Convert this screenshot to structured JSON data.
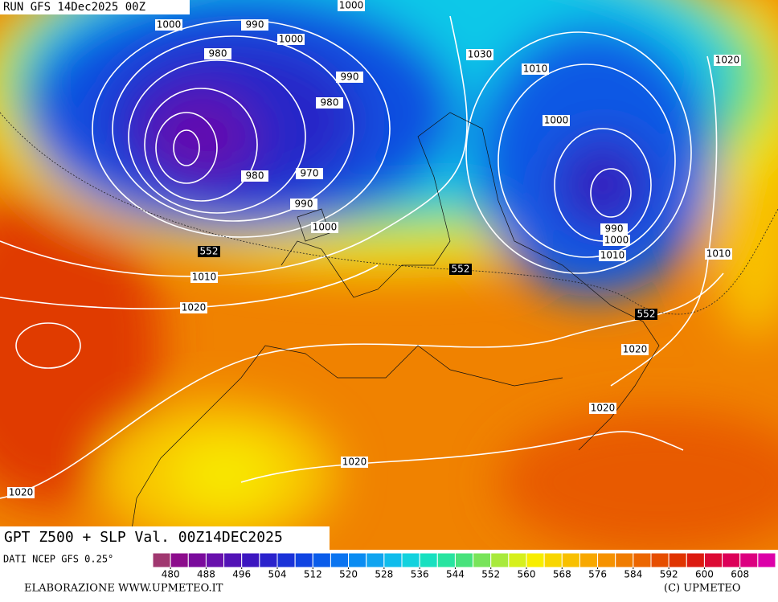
{
  "header": "RUN GFS 14Dec2025 00Z",
  "title": "GPT Z500 + SLP Val. 00Z14DEC2025",
  "source": "DATI NCEP GFS 0.25°",
  "credit_left": "ELABORAZIONE WWW.UPMETEO.IT",
  "credit_right": "(C) UPMETEO",
  "isobar_labels": [
    1000,
    990,
    1000,
    1000,
    980,
    990,
    980,
    1030,
    1010,
    1020,
    1000,
    980,
    970,
    990,
    1000,
    1010,
    990,
    1000,
    1010,
    1010,
    1020,
    1020,
    1020,
    1020,
    1020
  ],
  "z500_labels": [
    552,
    552,
    552
  ],
  "colorbar": {
    "lim": [
      476,
      616
    ],
    "ticks": [
      480,
      488,
      496,
      504,
      512,
      520,
      528,
      536,
      544,
      552,
      560,
      568,
      576,
      584,
      592,
      600,
      608
    ],
    "colors": [
      "#a03870",
      "#8c0c8c",
      "#7a0a9c",
      "#6810ac",
      "#5212b6",
      "#3c16c0",
      "#2a22cc",
      "#1a32d8",
      "#1044e2",
      "#0a5cea",
      "#0a74f0",
      "#0a8cf2",
      "#10a4f0",
      "#10bcec",
      "#12d2de",
      "#18e0c0",
      "#28e4a0",
      "#48e27c",
      "#78e45a",
      "#a8ea3c",
      "#d6f01c",
      "#f8ee00",
      "#f8d600",
      "#f8c000",
      "#f8a800",
      "#f69200",
      "#f07c00",
      "#ec6600",
      "#e64e00",
      "#e03400",
      "#dc1a10",
      "#dc0a34",
      "#dc0058",
      "#dc0080",
      "#dc00a8"
    ]
  }
}
